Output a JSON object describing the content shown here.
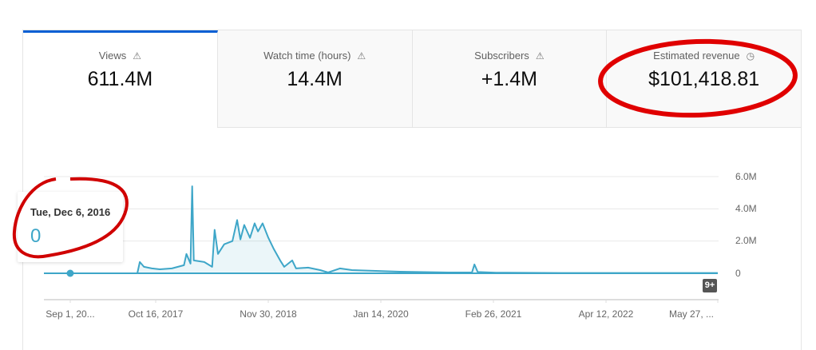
{
  "tabs": [
    {
      "label": "Views",
      "value": "611.4M",
      "icon": "warning-icon",
      "selected": true
    },
    {
      "label": "Watch time (hours)",
      "value": "14.4M",
      "icon": "warning-icon",
      "selected": false
    },
    {
      "label": "Subscribers",
      "value": "+1.4M",
      "icon": "warning-icon",
      "selected": false
    },
    {
      "label": "Estimated revenue",
      "value": "$101,418.81",
      "icon": "clock-icon",
      "selected": false
    }
  ],
  "tooltip": {
    "date": "Tue, Dec 6, 2016",
    "value": "0",
    "point_date": "2016-12-06"
  },
  "badge": "9+",
  "colors": {
    "accent": "#065fd4",
    "series": "#3ea6c8",
    "annotation": "#e00000"
  },
  "chart_data": {
    "type": "line",
    "x_start": "2016-09-01",
    "x_end": "2023-05-27",
    "x_tick_labels": [
      "Sep 1, 20...",
      "Oct 16, 2017",
      "Nov 30, 2018",
      "Jan 14, 2020",
      "Feb 26, 2021",
      "Apr 12, 2022",
      "May 27, ..."
    ],
    "y_tick_labels": [
      "6.0M",
      "4.0M",
      "2.0M",
      "0"
    ],
    "ylim": [
      0,
      6000000
    ],
    "grid": true,
    "points": [
      [
        "2016-09-01",
        0
      ],
      [
        "2017-08-08",
        0
      ],
      [
        "2017-08-17",
        0.7
      ],
      [
        "2017-09-01",
        0.4
      ],
      [
        "2017-09-30",
        0.3
      ],
      [
        "2017-10-29",
        0.25
      ],
      [
        "2017-12-12",
        0.3
      ],
      [
        "2018-01-25",
        0.5
      ],
      [
        "2018-02-03",
        1.2
      ],
      [
        "2018-02-18",
        0.6
      ],
      [
        "2018-02-24",
        5.4
      ],
      [
        "2018-03-02",
        0.8
      ],
      [
        "2018-04-09",
        0.7
      ],
      [
        "2018-05-08",
        0.4
      ],
      [
        "2018-05-17",
        2.7
      ],
      [
        "2018-05-29",
        1.2
      ],
      [
        "2018-06-21",
        1.8
      ],
      [
        "2018-07-21",
        2.0
      ],
      [
        "2018-08-07",
        3.3
      ],
      [
        "2018-08-19",
        2.1
      ],
      [
        "2018-09-02",
        3.0
      ],
      [
        "2018-09-23",
        2.2
      ],
      [
        "2018-10-10",
        3.1
      ],
      [
        "2018-10-22",
        2.6
      ],
      [
        "2018-11-08",
        3.1
      ],
      [
        "2018-11-29",
        2.2
      ],
      [
        "2018-12-19",
        1.5
      ],
      [
        "2019-01-11",
        0.8
      ],
      [
        "2019-01-26",
        0.4
      ],
      [
        "2019-02-24",
        0.8
      ],
      [
        "2019-03-10",
        0.3
      ],
      [
        "2019-04-23",
        0.35
      ],
      [
        "2019-06-06",
        0.2
      ],
      [
        "2019-07-05",
        0.05
      ],
      [
        "2019-08-17",
        0.3
      ],
      [
        "2019-09-30",
        0.2
      ],
      [
        "2019-12-26",
        0.15
      ],
      [
        "2020-03-23",
        0.1
      ],
      [
        "2020-09-15",
        0.05
      ],
      [
        "2020-12-11",
        0.05
      ],
      [
        "2020-12-20",
        0.55
      ],
      [
        "2021-01-01",
        0.08
      ],
      [
        "2021-03-09",
        0.04
      ],
      [
        "2021-10-30",
        0.02
      ],
      [
        "2023-05-27",
        0.02
      ]
    ],
    "value_unit": "millions of views"
  }
}
